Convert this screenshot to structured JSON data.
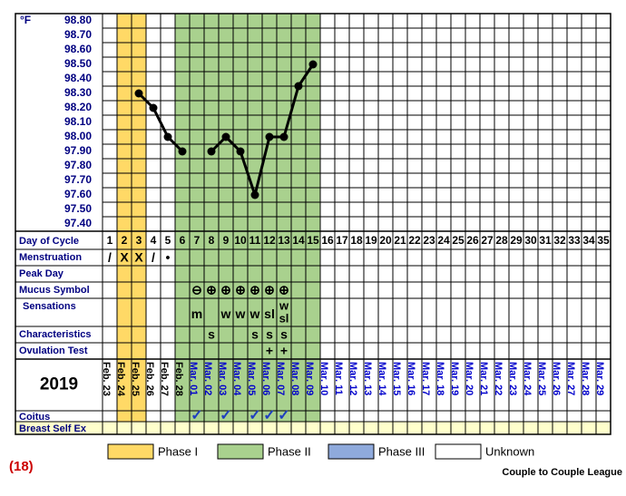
{
  "chart_data": {
    "type": "line",
    "ylabel": "°F",
    "color": "#000000",
    "categories": [
      "1",
      "2",
      "3",
      "4",
      "5",
      "6",
      "7",
      "8",
      "9",
      "10",
      "11",
      "12",
      "13",
      "14",
      "15",
      "16",
      "17",
      "18",
      "19",
      "20",
      "21",
      "22",
      "23",
      "24",
      "25",
      "26",
      "27",
      "28",
      "29",
      "30",
      "31",
      "32",
      "33",
      "34",
      "35"
    ],
    "values": [
      null,
      null,
      98.3,
      98.2,
      98.0,
      97.9,
      null,
      97.9,
      98.0,
      97.9,
      97.6,
      98.0,
      98.0,
      98.35,
      98.5,
      null,
      null,
      null,
      null,
      null,
      null,
      null,
      null,
      null,
      null,
      null,
      null,
      null,
      null,
      null,
      null,
      null,
      null,
      null,
      null
    ],
    "ylim": [
      97.35,
      98.85
    ],
    "yticks": [
      {
        "value": 98.8,
        "label": "98.80"
      },
      {
        "value": 98.7,
        "label": "98.70"
      },
      {
        "value": 98.6,
        "label": "98.60"
      },
      {
        "value": 98.5,
        "label": "98.50"
      },
      {
        "value": 98.4,
        "label": "98.40"
      },
      {
        "value": 98.3,
        "label": "98.30"
      },
      {
        "value": 98.2,
        "label": "98.20"
      },
      {
        "value": 98.1,
        "label": "98.10"
      },
      {
        "value": 98.0,
        "label": "98.00"
      },
      {
        "value": 97.9,
        "label": "97.90"
      },
      {
        "value": 97.8,
        "label": "97.80"
      },
      {
        "value": 97.7,
        "label": "97.70"
      },
      {
        "value": 97.6,
        "label": "97.60"
      },
      {
        "value": 97.5,
        "label": "97.50"
      },
      {
        "value": 97.4,
        "label": "97.40"
      }
    ]
  },
  "day_row_label": "Day of Cycle",
  "rows": [
    {
      "label": "Menstruation",
      "cells": [
        "/",
        "X",
        "X",
        "/",
        "•",
        null,
        null,
        null,
        null,
        null,
        null,
        null,
        null,
        null,
        null,
        null,
        null,
        null,
        null,
        null,
        null,
        null,
        null,
        null,
        null,
        null,
        null,
        null,
        null,
        null,
        null,
        null,
        null,
        null,
        null
      ]
    },
    {
      "label": "Peak Day"
    },
    {
      "label": "Mucus Symbol",
      "cells": [
        null,
        null,
        null,
        null,
        null,
        null,
        "⊖",
        "⊕",
        "⊕",
        "⊕",
        "⊕",
        "⊕",
        "⊕",
        null,
        null,
        null,
        null,
        null,
        null,
        null,
        null,
        null,
        null,
        null,
        null,
        null,
        null,
        null,
        null,
        null,
        null,
        null,
        null,
        null,
        null
      ]
    },
    {
      "label": "Sensations",
      "cells": [
        null,
        null,
        null,
        null,
        null,
        null,
        "m",
        null,
        "w",
        "w",
        "w",
        "sl",
        [
          "w",
          "sl"
        ],
        null,
        null,
        null,
        null,
        null,
        null,
        null,
        null,
        null,
        null,
        null,
        null,
        null,
        null,
        null,
        null,
        null,
        null,
        null,
        null,
        null,
        null
      ]
    },
    {
      "label": "Characteristics",
      "cells": [
        null,
        null,
        null,
        null,
        null,
        null,
        null,
        "s",
        null,
        null,
        "s",
        "s",
        "s",
        null,
        null,
        null,
        null,
        null,
        null,
        null,
        null,
        null,
        null,
        null,
        null,
        null,
        null,
        null,
        null,
        null,
        null,
        null,
        null,
        null,
        null
      ]
    },
    {
      "label": "Ovulation Test",
      "cells": [
        null,
        null,
        null,
        null,
        null,
        null,
        null,
        null,
        null,
        null,
        null,
        "+",
        "+",
        null,
        null,
        null,
        null,
        null,
        null,
        null,
        null,
        null,
        null,
        null,
        null,
        null,
        null,
        null,
        null,
        null,
        null,
        null,
        null,
        null,
        null
      ]
    }
  ],
  "year": "2019",
  "dates": [
    "Feb. 23",
    "Feb. 24",
    "Feb. 25",
    "Feb. 26",
    "Feb. 27",
    "Feb. 28",
    "Mar. 01",
    "Mar. 02",
    "Mar. 03",
    "Mar. 04",
    "Mar. 05",
    "Mar. 06",
    "Mar. 07",
    "Mar. 08",
    "Mar. 09",
    "Mar. 10",
    "Mar. 11",
    "Mar. 12",
    "Mar. 13",
    "Mar. 14",
    "Mar. 15",
    "Mar. 16",
    "Mar. 17",
    "Mar. 18",
    "Mar. 19",
    "Mar. 20",
    "Mar. 21",
    "Mar. 22",
    "Mar. 23",
    "Mar. 24",
    "Mar. 25",
    "Mar. 26",
    "Mar. 27",
    "Mar. 28",
    "Mar. 29"
  ],
  "month_colors": {
    "Feb.": "#000000",
    "Mar.": "#0000cc"
  },
  "bottom_rows": [
    {
      "label": "Coitus",
      "cells": [
        null,
        null,
        null,
        null,
        null,
        null,
        "✓",
        null,
        "✓",
        null,
        "✓",
        "✓",
        "✓",
        null,
        null,
        null,
        null,
        null,
        null,
        null,
        null,
        null,
        null,
        null,
        null,
        null,
        null,
        null,
        null,
        null,
        null,
        null,
        null,
        null,
        null
      ]
    },
    {
      "label": "Breast Self Ex",
      "color": "#ffffcc"
    }
  ],
  "phases": [
    {
      "name": "Phase I",
      "color": "#ffd966",
      "days": [
        2,
        3
      ]
    },
    {
      "name": "Phase II",
      "color": "#a9d18e",
      "days": [
        6,
        15
      ]
    },
    {
      "name": "Phase III",
      "color": "#8faadc"
    },
    {
      "name": "Unknown",
      "color": "#ffffff"
    }
  ],
  "chart_number": "(18)",
  "footer": "Couple to Couple League"
}
